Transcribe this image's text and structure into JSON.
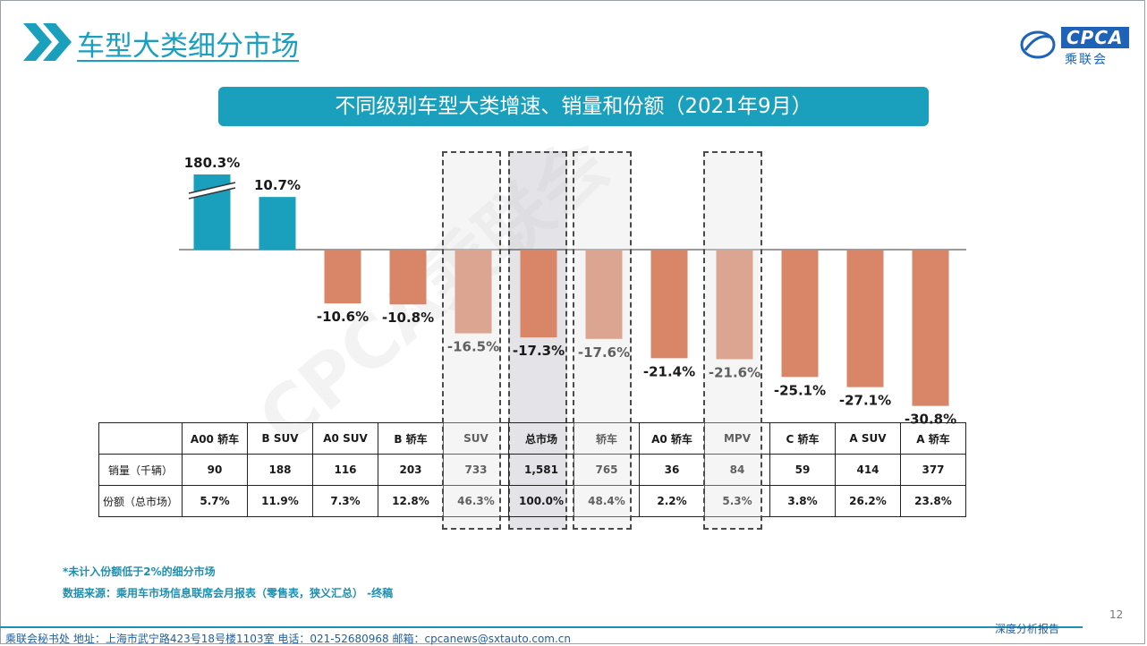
{
  "header": {
    "title": "车型大类细分市场"
  },
  "logo": {
    "brand": "CPCA",
    "name": "乘联会"
  },
  "watermark": "CPCA乘联会",
  "chart_data": {
    "type": "bar",
    "title": "不同级别车型大类增速、销量和份额（2021年9月）",
    "categories": [
      "A00 轿车",
      "B SUV",
      "A0 SUV",
      "B 轿车",
      "SUV",
      "总市场",
      "轿车",
      "A0 轿车",
      "MPV",
      "C 轿车",
      "A SUV",
      "A 轿车"
    ],
    "values": [
      180.3,
      10.7,
      -10.6,
      -10.8,
      -16.5,
      -17.3,
      -17.6,
      -21.4,
      -21.6,
      -25.1,
      -27.1,
      -30.8
    ],
    "value_labels": [
      "180.3%",
      "10.7%",
      "-10.6%",
      "-10.8%",
      "-16.5%",
      "-17.3%",
      "-17.6%",
      "-21.4%",
      "-21.6%",
      "-25.1%",
      "-27.1%",
      "-30.8%"
    ],
    "axis_break_on": "A00 轿车",
    "colors": {
      "positive": "#1aa0bd",
      "negative": "#d98568"
    },
    "highlighted": [
      "SUV",
      "总市场",
      "轿车",
      "MPV"
    ],
    "table": {
      "rows": [
        {
          "label": "销量（千辆）",
          "values": [
            "90",
            "188",
            "116",
            "203",
            "733",
            "1,581",
            "765",
            "36",
            "84",
            "59",
            "414",
            "377"
          ]
        },
        {
          "label": "份额（总市场）",
          "values": [
            "5.7%",
            "11.9%",
            "7.3%",
            "12.8%",
            "46.3%",
            "100.0%",
            "48.4%",
            "2.2%",
            "5.3%",
            "3.8%",
            "26.2%",
            "23.8%"
          ]
        }
      ]
    }
  },
  "notes": {
    "note1": "*未计入份额低于2%的细分市场",
    "note2": "数据来源：乘用车市场信息联席会月报表（零售表，狭义汇总）  -终稿"
  },
  "page_number": "12",
  "footer": {
    "address": "乘联会秘书处   地址：上海市武宁路423号18号楼1103室    电话：021-52680968     邮箱：cpcanews@sxtauto.com.cn",
    "right": "深度分析报告"
  }
}
